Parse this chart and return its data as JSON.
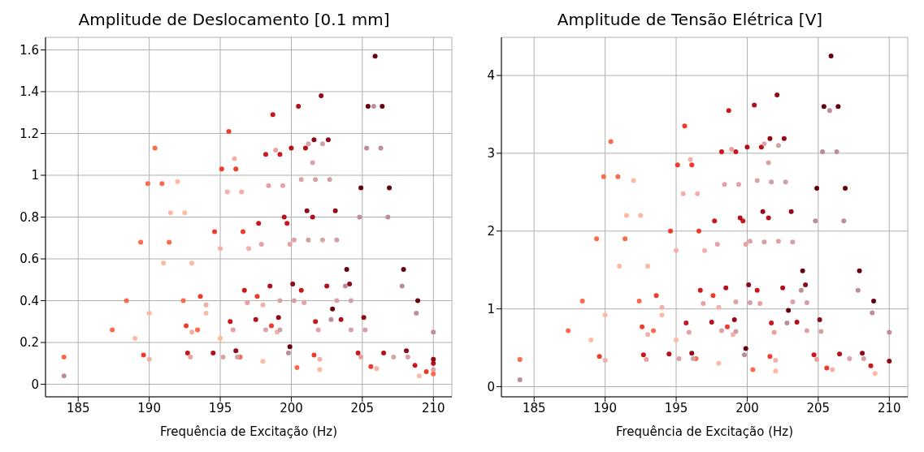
{
  "chart_data": [
    {
      "type": "scatter",
      "title": "Amplitude de Deslocamento [0.1 mm]",
      "xlabel": "Frequência de Excitação (Hz)",
      "xlim": [
        182.7,
        211.3
      ],
      "ylim": [
        -0.06,
        1.66
      ],
      "xticks": [
        185,
        190,
        195,
        200,
        205,
        210
      ],
      "yticks": [
        0,
        0.2,
        0.4,
        0.6,
        0.8,
        1,
        1.2,
        1.4,
        1.6
      ],
      "grid": true,
      "marker": "circle",
      "series": [
        {
          "color": "#fb6a4a",
          "x": [
            184,
            187.4,
            188.4,
            189.4,
            189.9,
            190.4,
            190.9,
            191.4,
            192.4,
            193.4,
            196.4,
            200.4,
            210
          ],
          "values": [
            0.13,
            0.26,
            0.4,
            0.68,
            0.96,
            1.13,
            0.96,
            0.68,
            0.4,
            0.26,
            0.13,
            0.08,
            0.05
          ]
        },
        {
          "color": "#fcbba1",
          "x": [
            189,
            190,
            191,
            191.5,
            192,
            192.5,
            193,
            194,
            195,
            198,
            202,
            209
          ],
          "values": [
            0.22,
            0.34,
            0.58,
            0.82,
            0.97,
            0.82,
            0.58,
            0.34,
            0.22,
            0.11,
            0.07,
            0.04
          ]
        },
        {
          "color": "#ef3b2c",
          "x": [
            189.6,
            192.6,
            193.6,
            194.6,
            195.1,
            195.6,
            196.1,
            196.6,
            197.6,
            198.6,
            201.6,
            205.6,
            209.5
          ],
          "values": [
            0.14,
            0.28,
            0.42,
            0.73,
            1.03,
            1.21,
            1.03,
            0.73,
            0.42,
            0.28,
            0.14,
            0.085,
            0.06
          ]
        },
        {
          "color": "#f4b0a8",
          "x": [
            190,
            193,
            194,
            195,
            195.5,
            196,
            196.5,
            197,
            198,
            199,
            202,
            206
          ],
          "values": [
            0.12,
            0.25,
            0.38,
            0.65,
            0.92,
            1.08,
            0.92,
            0.65,
            0.38,
            0.25,
            0.12,
            0.075
          ]
        },
        {
          "color": "#cb181d",
          "x": [
            192.7,
            195.7,
            196.7,
            197.7,
            198.2,
            198.7,
            199.2,
            199.7,
            200.7,
            201.7,
            204.7,
            208.7
          ],
          "values": [
            0.15,
            0.3,
            0.45,
            0.77,
            1.1,
            1.29,
            1.1,
            0.77,
            0.45,
            0.3,
            0.15,
            0.09
          ]
        },
        {
          "color": "#e8a0a0",
          "x": [
            192.9,
            195.9,
            196.9,
            197.9,
            198.4,
            198.9,
            199.4,
            199.9,
            200.9,
            201.9,
            204.9,
            210
          ],
          "values": [
            0.13,
            0.26,
            0.39,
            0.67,
            0.95,
            1.12,
            0.95,
            0.67,
            0.39,
            0.26,
            0.13,
            0.07
          ]
        },
        {
          "color": "#b3101c",
          "x": [
            194.5,
            197.5,
            198.5,
            199.5,
            200,
            200.5,
            201,
            201.5,
            202.5,
            203.5,
            206.5,
            210
          ],
          "values": [
            0.15,
            0.31,
            0.47,
            0.8,
            1.13,
            1.33,
            1.13,
            0.8,
            0.47,
            0.31,
            0.15,
            0.1
          ]
        },
        {
          "color": "#dba3a8",
          "x": [
            195.2,
            198.2,
            199.2,
            200.2,
            200.7,
            201.2,
            201.5,
            202.2,
            203.2,
            204.2,
            207.2
          ],
          "values": [
            0.13,
            0.26,
            0.4,
            0.69,
            0.98,
            1.15,
            1.06,
            0.69,
            0.4,
            0.26,
            0.13
          ]
        },
        {
          "color": "#8e0a18",
          "x": [
            196.1,
            199.1,
            200.1,
            201.1,
            201.6,
            202.1,
            202.6,
            203.1,
            204.1,
            205.1,
            208.1,
            210
          ],
          "values": [
            0.16,
            0.32,
            0.48,
            0.83,
            1.17,
            1.38,
            1.17,
            0.83,
            0.48,
            0.32,
            0.16,
            0.12
          ]
        },
        {
          "color": "#d3a0a6",
          "x": [
            196.2,
            199.2,
            200.2,
            201.2,
            201.7,
            202.2,
            202.7,
            203.2,
            204.2,
            205.2,
            208.2
          ],
          "values": [
            0.13,
            0.26,
            0.4,
            0.69,
            0.98,
            1.15,
            0.98,
            0.69,
            0.4,
            0.26,
            0.13
          ]
        },
        {
          "color": "#67000d",
          "x": [
            199.9,
            202.9,
            203.9,
            204.9,
            205.4,
            205.9,
            206.4,
            206.9,
            207.9,
            208.9
          ],
          "values": [
            0.18,
            0.36,
            0.55,
            0.94,
            1.33,
            1.57,
            1.33,
            0.94,
            0.55,
            0.4
          ]
        },
        {
          "color": "#bc8f98",
          "x": [
            184,
            199.8,
            202.8,
            203.8,
            204.8,
            205.3,
            205.8,
            206.3,
            206.8,
            207.8,
            208.8,
            210
          ],
          "values": [
            0.04,
            0.15,
            0.31,
            0.47,
            0.8,
            1.13,
            1.33,
            1.13,
            0.8,
            0.47,
            0.34,
            0.25
          ]
        }
      ]
    },
    {
      "type": "scatter",
      "title": "Amplitude de Tensão Elétrica [V]",
      "xlabel": "Frequência de Excitação (Hz)",
      "xlim": [
        182.7,
        211.3
      ],
      "ylim": [
        -0.13,
        4.49
      ],
      "xticks": [
        185,
        190,
        195,
        200,
        205,
        210
      ],
      "yticks": [
        0,
        1,
        2,
        3,
        4
      ],
      "grid": true,
      "marker": "circle",
      "series": [
        {
          "color": "#fb6a4a",
          "x": [
            184,
            187.4,
            188.4,
            189.4,
            189.9,
            190.4,
            190.9,
            191.4,
            192.4,
            193.4,
            196.4,
            200.4
          ],
          "values": [
            0.35,
            0.72,
            1.1,
            1.9,
            2.7,
            3.15,
            2.7,
            1.9,
            1.1,
            0.72,
            0.36,
            0.22
          ]
        },
        {
          "color": "#fcbba1",
          "x": [
            189,
            190,
            191,
            191.5,
            192,
            192.5,
            193,
            194,
            195,
            198,
            202,
            209
          ],
          "values": [
            0.6,
            0.92,
            1.55,
            2.2,
            2.65,
            2.2,
            1.55,
            0.92,
            0.6,
            0.3,
            0.2,
            0.17
          ]
        },
        {
          "color": "#ef3b2c",
          "x": [
            189.6,
            192.6,
            193.6,
            194.6,
            195.1,
            195.6,
            196.1,
            196.6,
            197.6,
            198.6,
            201.6,
            205.6
          ],
          "values": [
            0.39,
            0.77,
            1.17,
            2,
            2.85,
            3.35,
            2.85,
            2,
            1.17,
            0.77,
            0.39,
            0.24
          ]
        },
        {
          "color": "#f4b0a8",
          "x": [
            190,
            193,
            194,
            195,
            195.5,
            196,
            196.5,
            197,
            198,
            199,
            202,
            206
          ],
          "values": [
            0.34,
            0.67,
            1.02,
            1.75,
            2.48,
            2.92,
            2.48,
            1.75,
            1.02,
            0.67,
            0.34,
            0.22
          ]
        },
        {
          "color": "#cb181d",
          "x": [
            192.7,
            195.7,
            196.7,
            197.7,
            198.2,
            198.7,
            199.2,
            199.7,
            200.7,
            201.7,
            204.7,
            208.7
          ],
          "values": [
            0.41,
            0.82,
            1.24,
            2.13,
            3.02,
            3.55,
            3.02,
            2.13,
            1.24,
            0.82,
            0.41,
            0.27
          ]
        },
        {
          "color": "#e8a0a0",
          "x": [
            192.9,
            195.9,
            196.9,
            197.9,
            198.4,
            198.9,
            199.4,
            199.9,
            200.9,
            201.9,
            204.9
          ],
          "values": [
            0.35,
            0.7,
            1.07,
            1.83,
            2.6,
            3.05,
            2.6,
            1.83,
            1.07,
            0.7,
            0.35
          ]
        },
        {
          "color": "#b3101c",
          "x": [
            194.5,
            197.5,
            198.5,
            199.5,
            200,
            200.5,
            201,
            201.5,
            202.5,
            203.5,
            206.5
          ],
          "values": [
            0.42,
            0.83,
            1.27,
            2.17,
            3.08,
            3.62,
            3.08,
            2.17,
            1.27,
            0.83,
            0.42
          ]
        },
        {
          "color": "#dba3a8",
          "x": [
            195.2,
            198.2,
            199.2,
            200.2,
            200.7,
            201.2,
            201.5,
            202.2,
            203.2,
            204.2,
            207.2
          ],
          "values": [
            0.36,
            0.72,
            1.09,
            1.87,
            2.65,
            3.12,
            2.88,
            1.87,
            1.09,
            0.72,
            0.36
          ]
        },
        {
          "color": "#8e0a18",
          "x": [
            196.1,
            199.1,
            200.1,
            201.1,
            201.6,
            202.1,
            202.6,
            203.1,
            204.1,
            205.1,
            208.1,
            210
          ],
          "values": [
            0.43,
            0.86,
            1.31,
            2.25,
            3.19,
            3.75,
            3.19,
            2.25,
            1.31,
            0.86,
            0.43,
            0.33
          ]
        },
        {
          "color": "#d3a0a6",
          "x": [
            196.2,
            199.2,
            200.2,
            201.2,
            201.7,
            202.2,
            202.7,
            203.2,
            204.2,
            205.2,
            208.2
          ],
          "values": [
            0.36,
            0.71,
            1.08,
            1.86,
            2.63,
            3.1,
            2.63,
            1.86,
            1.08,
            0.71,
            0.36
          ]
        },
        {
          "color": "#67000d",
          "x": [
            199.9,
            202.9,
            203.9,
            204.9,
            205.4,
            205.9,
            206.4,
            206.9,
            207.9,
            208.9
          ],
          "values": [
            0.49,
            0.98,
            1.49,
            2.55,
            3.6,
            4.25,
            3.6,
            2.55,
            1.49,
            1.1
          ]
        },
        {
          "color": "#bc8f98",
          "x": [
            184,
            199.8,
            202.8,
            203.8,
            204.8,
            205.3,
            205.8,
            206.3,
            206.8,
            207.8,
            208.8,
            210
          ],
          "values": [
            0.09,
            0.41,
            0.82,
            1.24,
            2.13,
            3.02,
            3.55,
            3.02,
            2.13,
            1.24,
            0.95,
            0.7
          ]
        }
      ]
    }
  ]
}
